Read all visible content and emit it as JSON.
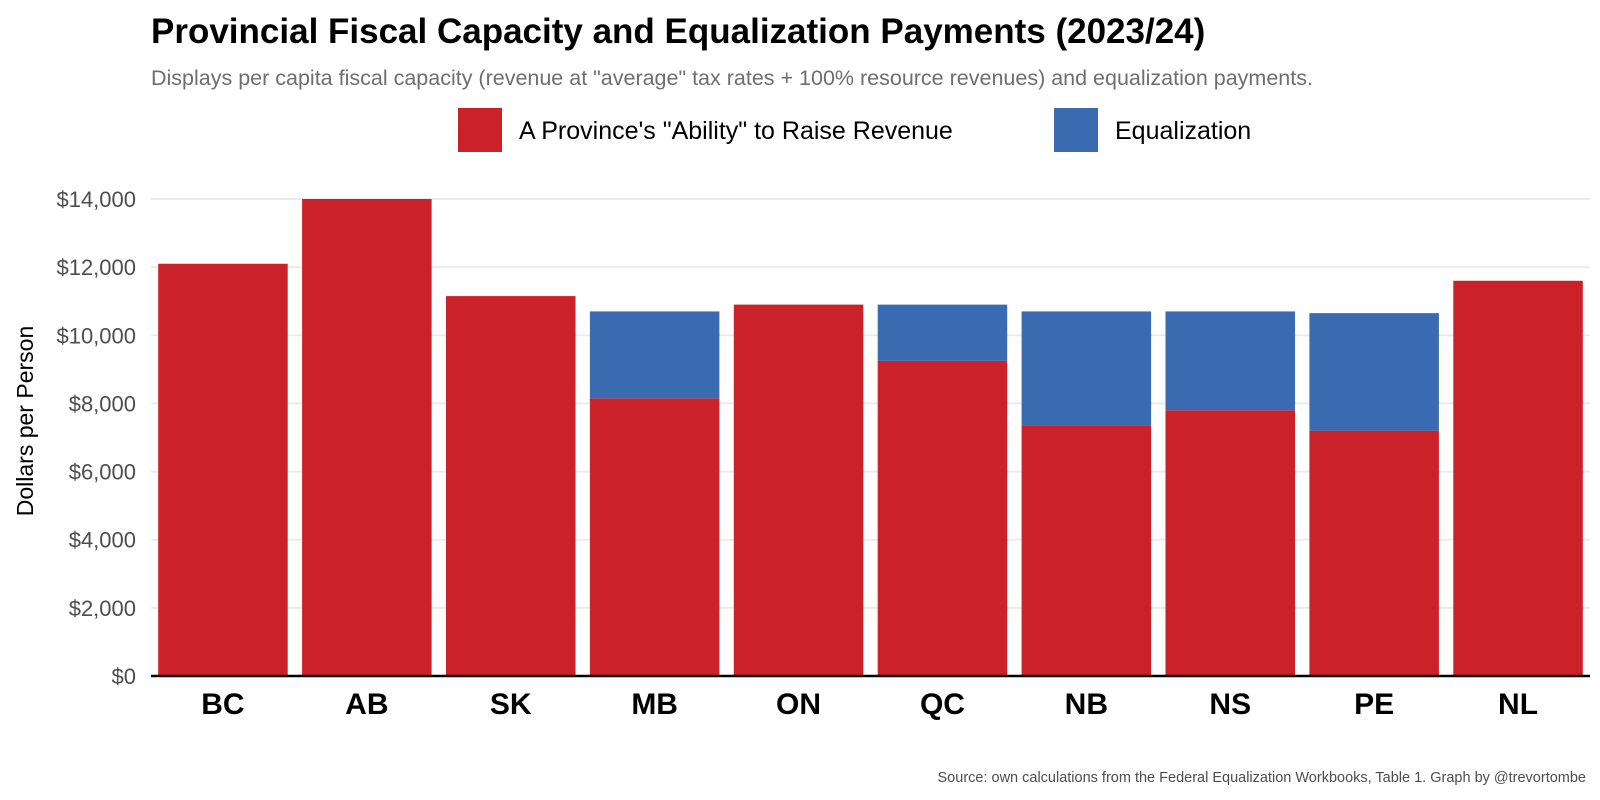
{
  "chart_data": {
    "type": "bar",
    "stacked": true,
    "title": "Provincial Fiscal Capacity and Equalization Payments (2023/24)",
    "subtitle": "Displays per capita fiscal capacity (revenue at \"average\" tax rates + 100% resource revenues) and equalization payments.",
    "xlabel": "",
    "ylabel": "Dollars per Person",
    "caption": "Source: own calculations from the Federal Equalization Workbooks, Table 1. Graph by @trevortombe",
    "categories": [
      "BC",
      "AB",
      "SK",
      "MB",
      "ON",
      "QC",
      "NB",
      "NS",
      "PE",
      "NL"
    ],
    "series": [
      {
        "name": "A Province's \"Ability\" to Raise Revenue",
        "color": "#cb2229",
        "values": [
          12100,
          14000,
          11150,
          8150,
          10900,
          9250,
          7350,
          7800,
          7200,
          11600
        ]
      },
      {
        "name": "Equalization",
        "color": "#3a6ab0",
        "values": [
          0,
          0,
          0,
          2550,
          0,
          1650,
          3350,
          2900,
          3450,
          0
        ]
      }
    ],
    "ylim": [
      0,
      14000
    ],
    "yticks": [
      0,
      2000,
      4000,
      6000,
      8000,
      10000,
      12000,
      14000
    ],
    "ytick_labels": [
      "$0",
      "$2,000",
      "$4,000",
      "$6,000",
      "$8,000",
      "$10,000",
      "$12,000",
      "$14,000"
    ],
    "grid": true,
    "legend_position": "top"
  }
}
